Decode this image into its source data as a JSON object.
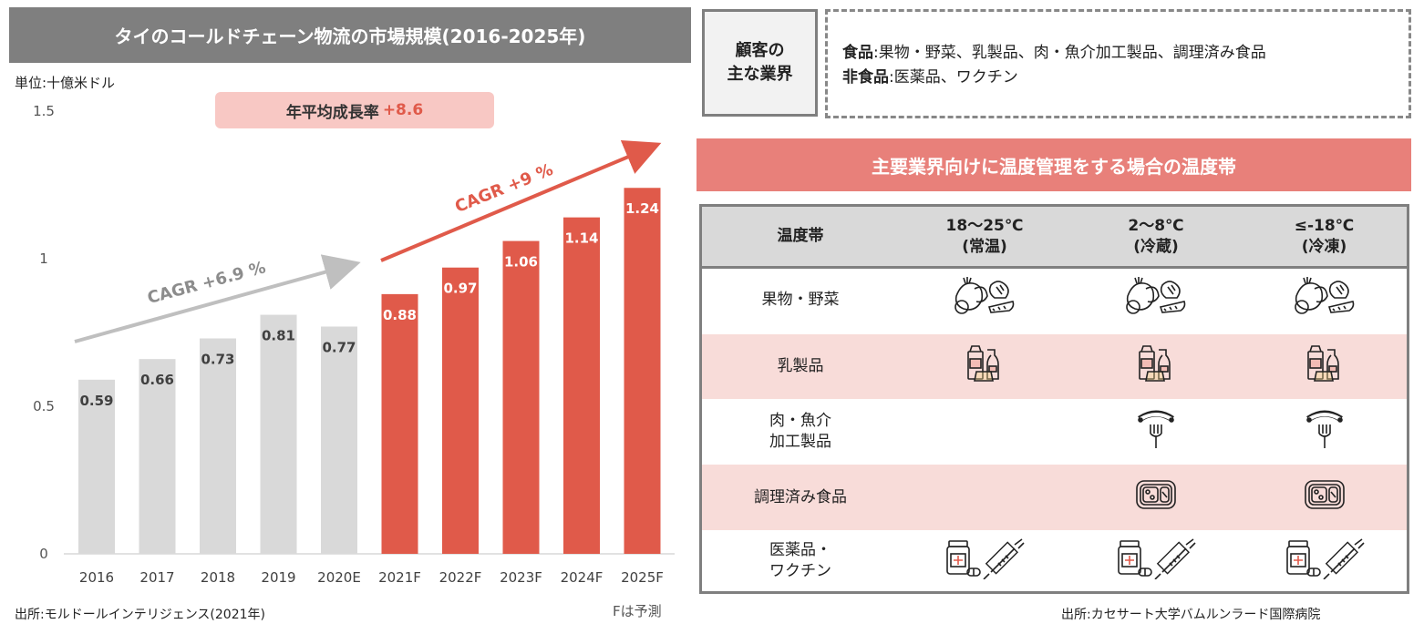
{
  "left": {
    "title": "タイのコールドチェーン物流の市場規模(2016-2025年)",
    "unit": "単位:十億米ドル",
    "cagr_box_label": "年平均成長率",
    "cagr_box_value": "+8.6",
    "cagr_past": "CAGR +6.9 %",
    "cagr_future": "CAGR +9 %",
    "source": "出所:モルドールインテリジェンス(2021年)",
    "forecast_note": "Fは予測"
  },
  "chart_data": {
    "type": "bar",
    "categories": [
      "2016",
      "2017",
      "2018",
      "2019",
      "2020E",
      "2021F",
      "2022F",
      "2023F",
      "2024F",
      "2025F"
    ],
    "values": [
      0.59,
      0.66,
      0.73,
      0.81,
      0.77,
      0.88,
      0.97,
      1.06,
      1.14,
      1.24
    ],
    "value_labels": [
      "0.59",
      "0.66",
      "0.73",
      "0.81",
      "0.77",
      "0.88",
      "0.97",
      "1.06",
      "1.14",
      "1.24"
    ],
    "ylim": [
      0,
      1.5
    ],
    "yticks": [
      0,
      0.5,
      1,
      1.5
    ],
    "ytick_labels": [
      "0",
      "0.5",
      "1",
      "1.5"
    ],
    "grid": false,
    "colors": {
      "actual": "#d9d9d9",
      "forecast": "#e05a4a",
      "past_arrow": "#bfbfbf",
      "future_arrow": "#e05a4a"
    }
  },
  "right": {
    "customer_head_line1": "顧客の",
    "customer_head_line2": "主な業界",
    "food_label": "食品",
    "food_items": ":果物・野菜、乳製品、肉・魚介加工製品、調理済み食品",
    "nonfood_label": "非食品",
    "nonfood_items": ":医薬品、ワクチン",
    "temp_title": "主要業界向けに温度管理をする場合の温度帯",
    "table": {
      "header": [
        "温度帯",
        "18〜25℃",
        "(常温)",
        "2〜8℃",
        "(冷蔵)",
        "≤-18℃",
        "(冷凍)"
      ],
      "rows": [
        {
          "label1": "果物・野菜",
          "label2": "",
          "icons": [
            "fruit-veg-icon",
            "fruit-veg-icon",
            "fruit-veg-icon"
          ]
        },
        {
          "label1": "乳製品",
          "label2": "",
          "icons": [
            "dairy-icon",
            "dairy-icon",
            "dairy-icon"
          ]
        },
        {
          "label1": "肉・魚介",
          "label2": "加工製品",
          "icons": [
            "",
            "sausage-icon",
            "sausage-icon"
          ]
        },
        {
          "label1": "調理済み食品",
          "label2": "",
          "icons": [
            "",
            "ready-meal-icon",
            "ready-meal-icon"
          ]
        },
        {
          "label1": "医薬品・",
          "label2": "ワクチン",
          "icons": [
            "medicine-vaccine-icon",
            "medicine-vaccine-icon",
            "medicine-vaccine-icon"
          ]
        }
      ]
    },
    "source": "出所:カセサート大学バムルンラード国際病院"
  }
}
